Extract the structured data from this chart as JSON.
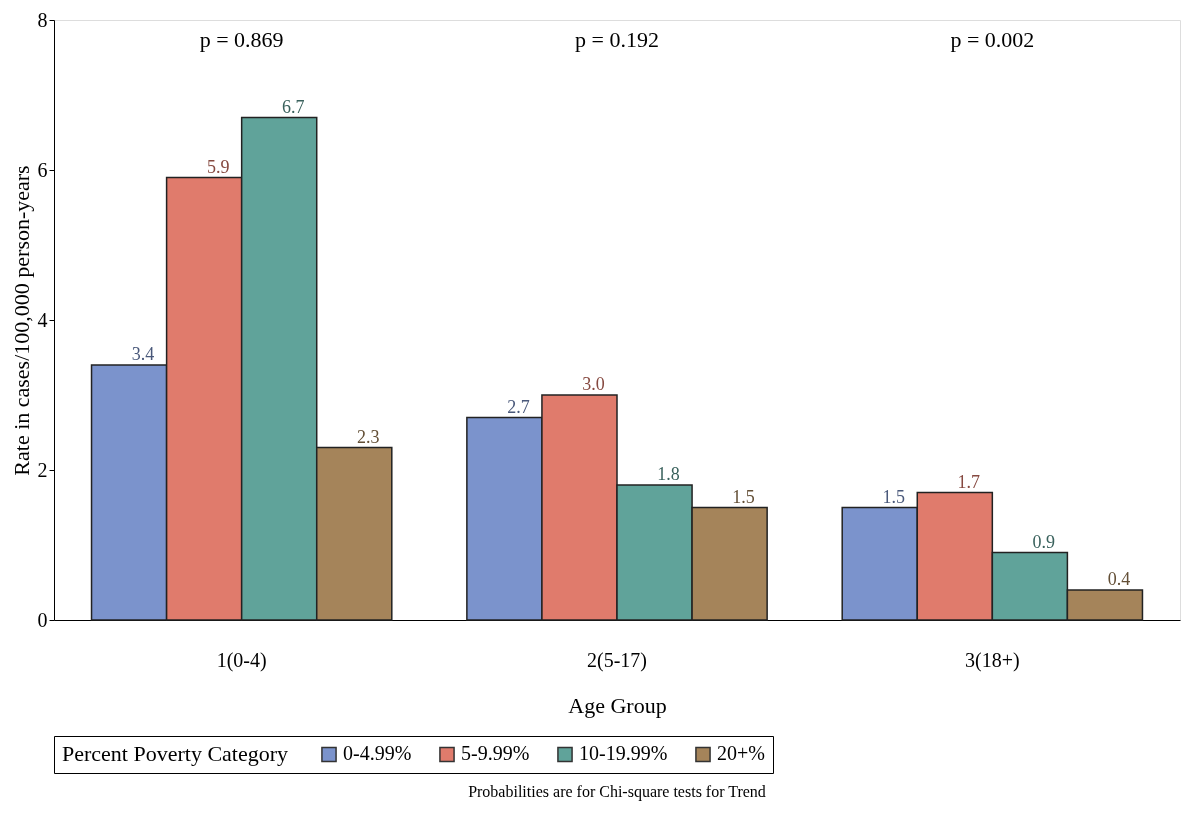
{
  "chart_data": {
    "type": "bar",
    "xlabel": "Age Group",
    "ylabel": "Rate in cases/100,000 person-years",
    "legend_title": "Percent Poverty Category",
    "categories": [
      "1(0-4)",
      "2(5-17)",
      "3(18+)"
    ],
    "series": [
      {
        "name": "0-4.99%",
        "color": "#7b93cc",
        "values": [
          3.4,
          2.7,
          1.5
        ],
        "value_labels": [
          "3.4",
          "2.7",
          "1.5"
        ]
      },
      {
        "name": "5-9.99%",
        "color": "#e07b6c",
        "values": [
          5.9,
          3.0,
          1.7
        ],
        "value_labels": [
          "5.9",
          "3.0",
          "1.7"
        ]
      },
      {
        "name": "10-19.99%",
        "color": "#60a39a",
        "values": [
          6.7,
          1.8,
          0.9
        ],
        "value_labels": [
          "6.7",
          "1.8",
          "0.9"
        ]
      },
      {
        "name": "20+%",
        "color": "#a5845a",
        "values": [
          2.3,
          1.5,
          0.4
        ],
        "value_labels": [
          "2.3",
          "1.5",
          "0.4"
        ]
      }
    ],
    "ylim": [
      0,
      8
    ],
    "yticks": [
      0,
      2,
      4,
      6,
      8
    ],
    "legend": "bottom",
    "grid": false,
    "annotations": [
      "p = 0.869",
      "p = 0.192",
      "p = 0.002",
      "Probabilities are for Chi-square tests for Trend"
    ]
  }
}
